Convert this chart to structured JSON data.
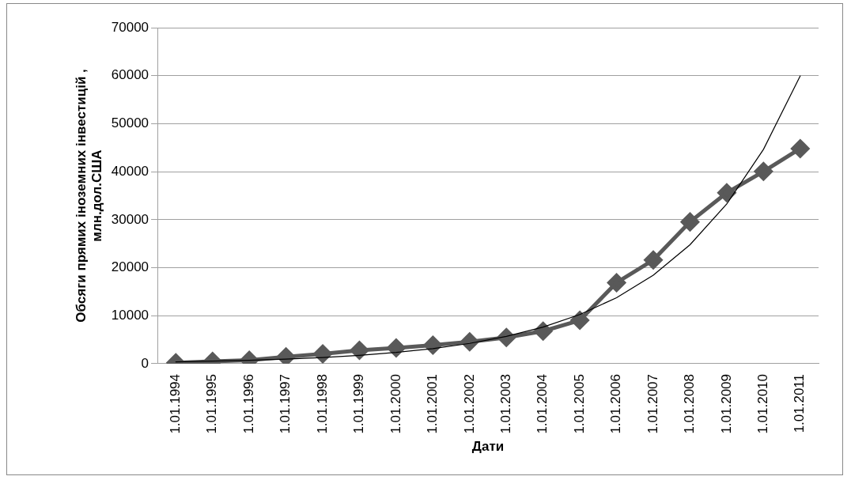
{
  "chart_data": {
    "type": "line",
    "xlabel": "Дати",
    "ylabel": "Обсяги прямих іноземних інвестицій ,\nмлн.дол.США",
    "categories": [
      "1.01.1994",
      "1.01.1995",
      "1.01.1996",
      "1.01.1997",
      "1.01.1998",
      "1.01.1999",
      "1.01.2000",
      "1.01.2001",
      "1.01.2002",
      "1.01.2003",
      "1.01.2004",
      "1.01.2005",
      "1.01.2006",
      "1.01.2007",
      "1.01.2008",
      "1.01.2009",
      "1.01.2010",
      "1.01.2011"
    ],
    "series": [
      {
        "color": "#595959",
        "marker": "diamond",
        "values": [
          200,
          480,
          750,
          1440,
          2060,
          2810,
          3280,
          3880,
          4560,
          5470,
          6790,
          9050,
          16890,
          21610,
          29540,
          35620,
          40050,
          44810
        ]
      },
      {
        "type": "line",
        "color": "#000000",
        "marker": "none",
        "values": [
          400,
          540,
          720,
          970,
          1300,
          1750,
          2350,
          3160,
          4240,
          5690,
          7630,
          10250,
          13760,
          18460,
          24790,
          33270,
          44660,
          59950
        ]
      }
    ],
    "ylim": [
      0,
      70000
    ],
    "yticks": [
      0,
      10000,
      20000,
      30000,
      40000,
      50000,
      60000,
      70000
    ],
    "grid": "y",
    "legend": false
  }
}
